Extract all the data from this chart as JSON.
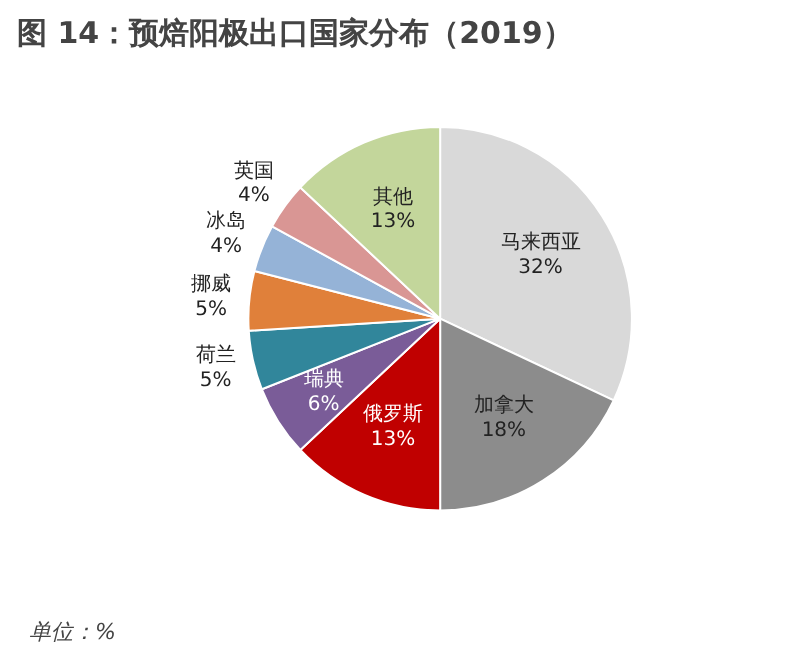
{
  "chart_data": {
    "type": "pie",
    "title": "图 14：预焙阳极出口国家分布（2019）",
    "categories": [
      "马来西亚",
      "加拿大",
      "俄罗斯",
      "瑞典",
      "荷兰",
      "挪威",
      "冰岛",
      "英国",
      "其他"
    ],
    "values": [
      32,
      18,
      13,
      6,
      5,
      5,
      4,
      4,
      13
    ],
    "colors": [
      "#d9d9d9",
      "#8c8c8c",
      "#c00000",
      "#7a5c98",
      "#31869b",
      "#e0803a",
      "#95b3d7",
      "#d99694",
      "#c3d69b"
    ],
    "value_labels": [
      "32%",
      "18%",
      "13%",
      "6%",
      "5%",
      "5%",
      "4%",
      "4%",
      "13%"
    ],
    "annotations": [
      "单位：%"
    ],
    "legend": false
  }
}
